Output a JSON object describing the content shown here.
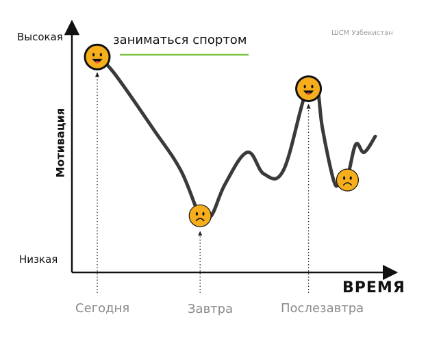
{
  "chart_data": {
    "type": "line",
    "title": "",
    "xlabel": "ВРЕМЯ",
    "ylabel": "Мотивация",
    "y_tick_labels": [
      "Высокая",
      "Низкая"
    ],
    "categories": [
      "Сегодня",
      "Завтра",
      "Послезавтра"
    ],
    "x": [
      0.0,
      0.06,
      0.2,
      0.3,
      0.37,
      0.41,
      0.46,
      0.54,
      0.6,
      0.67,
      0.75,
      0.79,
      0.81,
      0.85,
      0.87,
      0.9,
      0.93,
      0.96,
      1.0
    ],
    "series": [
      {
        "values": [
          0.92,
          0.84,
          0.56,
          0.35,
          0.12,
          0.12,
          0.28,
          0.44,
          0.33,
          0.35,
          0.74,
          0.76,
          0.56,
          0.3,
          0.28,
          0.32,
          0.48,
          0.44,
          0.52
        ]
      }
    ],
    "ylim": [
      0,
      1
    ],
    "xlim": [
      0,
      1
    ],
    "grid": false,
    "annotation": "заниматься спортом",
    "markers": [
      {
        "x": 0.0,
        "y": 0.92,
        "mood": "happy"
      },
      {
        "x": 0.37,
        "y": 0.12,
        "mood": "sad"
      },
      {
        "x": 0.76,
        "y": 0.76,
        "mood": "happy"
      },
      {
        "x": 0.9,
        "y": 0.3,
        "mood": "sad"
      }
    ],
    "category_positions": [
      0.0,
      0.37,
      0.76
    ],
    "colors": {
      "line": "#3a3a3a",
      "axis": "#111111",
      "face": "#f6ae1d",
      "face_outline": "#111111",
      "underline": "#7ec243",
      "tick_text": "#8a8a8a"
    }
  },
  "watermark": "ШСМ Узбекистан"
}
